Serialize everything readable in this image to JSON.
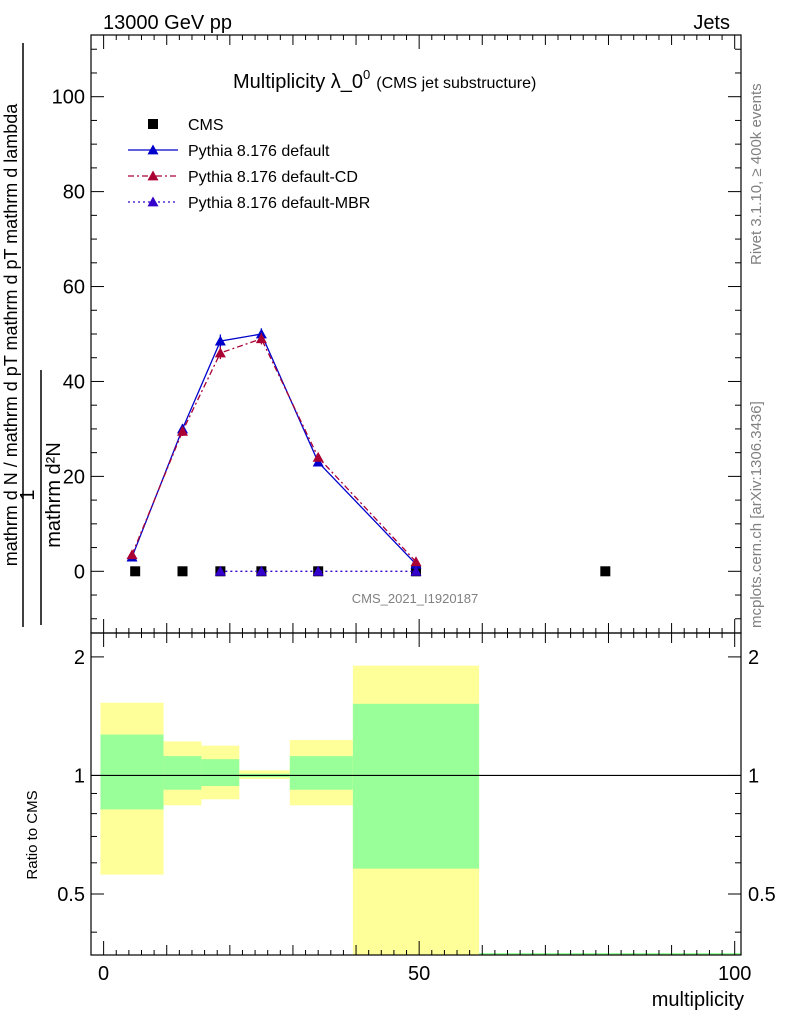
{
  "header": {
    "left": "13000 GeV pp",
    "right": "Jets"
  },
  "side": {
    "rivet": "Rivet 3.1.10, ≥ 400k events",
    "mcplots": "mcplots.cern.ch [arXiv:1306.3436]"
  },
  "chart_data": [
    {
      "type": "line",
      "title": "Multiplicity λ_0",
      "title_superscript": "0",
      "subtitle": "(CMS jet substructure)",
      "watermark": "CMS_2021_I1920187",
      "ylabel": {
        "prefactor": "1",
        "numerator": "mathrm d²N",
        "denominator": "mathrm d N / mathrm d pT mathrm d pT mathrm d lambda"
      },
      "ylim": [
        -13,
        113
      ],
      "xlim": [
        -2,
        101
      ],
      "yticks": [
        0,
        20,
        40,
        60,
        80,
        100
      ],
      "legend_position": "top-left",
      "series": [
        {
          "name": "CMS",
          "marker": "square",
          "color": "#000000",
          "x": [
            5,
            12.5,
            18.5,
            25,
            34,
            49.5,
            79.5
          ],
          "y": [
            0,
            0,
            0,
            0,
            0,
            0,
            0
          ]
        },
        {
          "name": "Pythia 8.176 default",
          "marker": "triangle",
          "line": "solid",
          "color": "#0000cc",
          "x": [
            4.5,
            12.5,
            18.5,
            25,
            34,
            49.5
          ],
          "y": [
            3,
            30,
            48.5,
            50,
            23,
            1.5
          ],
          "yerr": [
            0.3,
            1,
            1.4,
            1.2,
            0.6,
            0.3
          ]
        },
        {
          "name": "Pythia 8.176 default-CD",
          "marker": "triangle",
          "line": "dashdot",
          "color": "#aa0033",
          "x": [
            4.5,
            12.5,
            18.5,
            25,
            34,
            49.5
          ],
          "y": [
            3.5,
            29.5,
            46,
            49,
            24,
            2
          ],
          "yerr": [
            0.3,
            1,
            1.3,
            1.2,
            0.6,
            0.3
          ]
        },
        {
          "name": "Pythia 8.176 default-MBR",
          "marker": "triangle",
          "line": "dotted",
          "color": "#3300cc",
          "x": [
            18.5,
            25,
            34,
            49.5
          ],
          "y": [
            0,
            0,
            0,
            0
          ]
        }
      ]
    },
    {
      "type": "area",
      "ylabel": "Ratio to CMS",
      "xlabel": "multiplicity",
      "xlim": [
        -2,
        101
      ],
      "ylim": [
        0.35,
        2.3
      ],
      "yticks": [
        0.5,
        1,
        2
      ],
      "xticks": [
        0,
        50,
        100
      ],
      "colors": {
        "inner": "#99ff99",
        "outer": "#ffff99"
      },
      "bands": [
        {
          "x0": -0.5,
          "x1": 9.5,
          "inner": [
            0.82,
            1.27
          ],
          "outer": [
            0.56,
            1.53
          ]
        },
        {
          "x0": 9.5,
          "x1": 15.5,
          "inner": [
            0.92,
            1.12
          ],
          "outer": [
            0.84,
            1.22
          ]
        },
        {
          "x0": 15.5,
          "x1": 21.5,
          "inner": [
            0.94,
            1.1
          ],
          "outer": [
            0.87,
            1.19
          ]
        },
        {
          "x0": 21.5,
          "x1": 29.5,
          "inner": [
            0.99,
            1.01
          ],
          "outer": [
            0.98,
            1.03
          ]
        },
        {
          "x0": 29.5,
          "x1": 39.5,
          "inner": [
            0.92,
            1.12
          ],
          "outer": [
            0.84,
            1.23
          ]
        },
        {
          "x0": 39.5,
          "x1": 59.5,
          "inner": [
            0.58,
            1.52
          ],
          "outer": [
            0.35,
            1.9
          ]
        }
      ],
      "reference": 1
    }
  ]
}
